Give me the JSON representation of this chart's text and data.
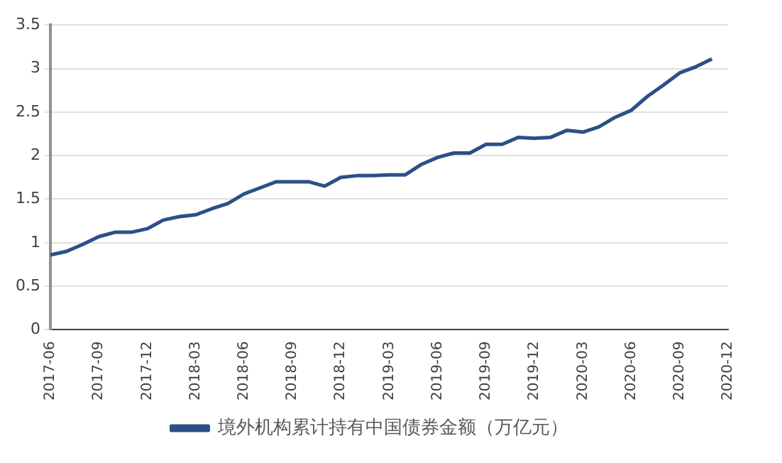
{
  "chart_data": {
    "type": "line",
    "x": [
      "2017-06",
      "2017-07",
      "2017-08",
      "2017-09",
      "2017-10",
      "2017-11",
      "2017-12",
      "2018-01",
      "2018-02",
      "2018-03",
      "2018-04",
      "2018-05",
      "2018-06",
      "2018-07",
      "2018-08",
      "2018-09",
      "2018-10",
      "2018-11",
      "2018-12",
      "2019-01",
      "2019-02",
      "2019-03",
      "2019-04",
      "2019-05",
      "2019-06",
      "2019-07",
      "2019-08",
      "2019-09",
      "2019-10",
      "2019-11",
      "2019-12",
      "2020-01",
      "2020-02",
      "2020-03",
      "2020-04",
      "2020-05",
      "2020-06",
      "2020-07",
      "2020-08",
      "2020-09",
      "2020-10",
      "2020-11"
    ],
    "series": [
      {
        "name": "境外机构累计持有中国债券金额（万亿元）",
        "color": "#2b5088",
        "values": [
          0.86,
          0.9,
          0.98,
          1.07,
          1.12,
          1.12,
          1.16,
          1.26,
          1.3,
          1.32,
          1.39,
          1.45,
          1.56,
          1.63,
          1.7,
          1.7,
          1.7,
          1.65,
          1.75,
          1.77,
          1.77,
          1.78,
          1.78,
          1.9,
          1.98,
          2.03,
          2.03,
          2.13,
          2.13,
          2.21,
          2.2,
          2.21,
          2.29,
          2.27,
          2.33,
          2.44,
          2.52,
          2.68,
          2.81,
          2.95,
          3.02,
          3.11
        ]
      }
    ],
    "xlim": [
      "2017-06",
      "2020-12"
    ],
    "xticks": [
      "2017-06",
      "2017-09",
      "2017-12",
      "2018-03",
      "2018-06",
      "2018-09",
      "2018-12",
      "2019-03",
      "2019-06",
      "2019-09",
      "2019-12",
      "2020-03",
      "2020-06",
      "2020-09",
      "2020-12"
    ],
    "ylim": [
      0,
      3.5
    ],
    "yticks": [
      0,
      0.5,
      1,
      1.5,
      2,
      2.5,
      3,
      3.5
    ],
    "grid": "y",
    "legend": "bottom",
    "marker": "none",
    "line_style": "solid"
  }
}
